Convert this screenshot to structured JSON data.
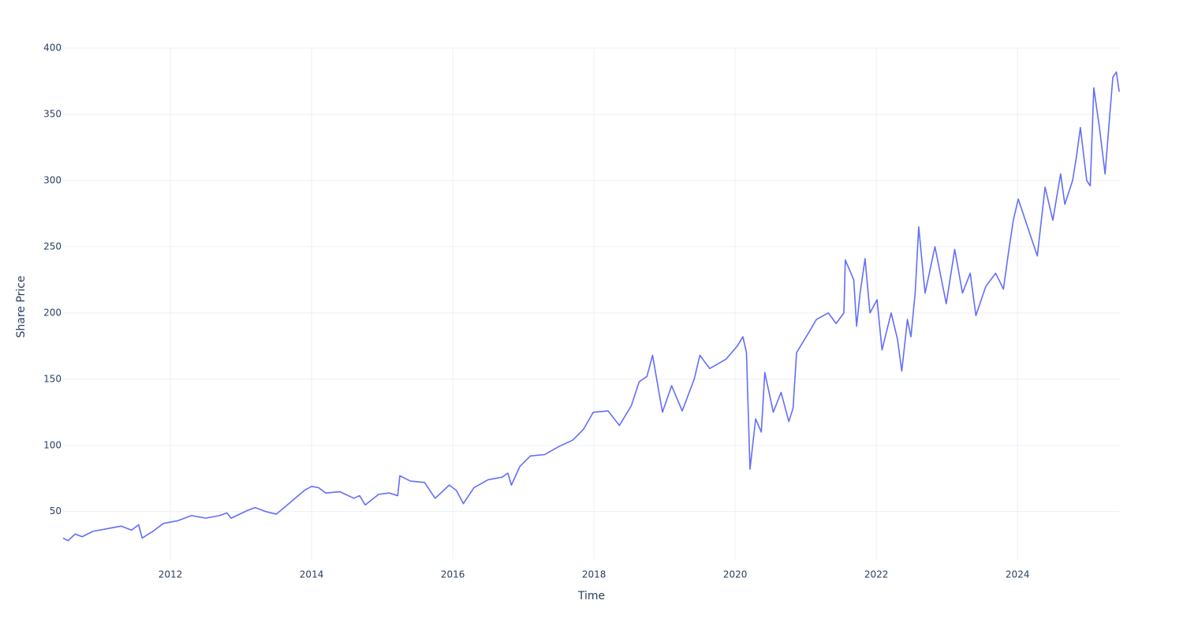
{
  "chart_data": {
    "type": "line",
    "x_label": "Time",
    "y_label": "Share Price",
    "color": "#636efa",
    "grid": true,
    "xlim": [
      2010.48,
      2025.45
    ],
    "xticks": [
      2012,
      2014,
      2016,
      2018,
      2020,
      2022,
      2024
    ],
    "ylim": [
      13.5,
      400.6
    ],
    "yticks": [
      50,
      100,
      150,
      200,
      250,
      300,
      350,
      400
    ],
    "x": [
      2010.48,
      2010.55,
      2010.65,
      2010.75,
      2010.9,
      2011.1,
      2011.3,
      2011.45,
      2011.55,
      2011.6,
      2011.75,
      2011.9,
      2012.1,
      2012.3,
      2012.5,
      2012.7,
      2012.8,
      2012.86,
      2013.1,
      2013.2,
      2013.35,
      2013.5,
      2013.7,
      2013.9,
      2014.0,
      2014.1,
      2014.2,
      2014.4,
      2014.6,
      2014.68,
      2014.76,
      2014.95,
      2015.1,
      2015.22,
      2015.25,
      2015.4,
      2015.6,
      2015.75,
      2015.95,
      2016.05,
      2016.15,
      2016.3,
      2016.5,
      2016.7,
      2016.78,
      2016.83,
      2016.95,
      2017.1,
      2017.3,
      2017.5,
      2017.7,
      2017.85,
      2017.99,
      2018.2,
      2018.36,
      2018.53,
      2018.64,
      2018.75,
      2018.83,
      2018.97,
      2019.1,
      2019.25,
      2019.42,
      2019.5,
      2019.64,
      2019.87,
      2020.03,
      2020.11,
      2020.16,
      2020.21,
      2020.29,
      2020.37,
      2020.42,
      2020.54,
      2020.65,
      2020.76,
      2020.82,
      2020.87,
      2021.04,
      2021.15,
      2021.32,
      2021.43,
      2021.54,
      2021.56,
      2021.68,
      2021.72,
      2021.77,
      2021.84,
      2021.91,
      2022.01,
      2022.08,
      2022.21,
      2022.3,
      2022.36,
      2022.44,
      2022.49,
      2022.55,
      2022.6,
      2022.69,
      2022.83,
      2022.99,
      2023.11,
      2023.22,
      2023.33,
      2023.41,
      2023.55,
      2023.69,
      2023.8,
      2023.87,
      2023.94,
      2024.01,
      2024.11,
      2024.28,
      2024.39,
      2024.5,
      2024.61,
      2024.67,
      2024.78,
      2024.84,
      2024.89,
      2024.98,
      2025.03,
      2025.08,
      2025.16,
      2025.24,
      2025.3,
      2025.35,
      2025.4,
      2025.44
    ],
    "values": [
      30,
      28,
      33,
      31,
      35,
      37,
      39,
      36,
      40,
      30,
      35,
      41,
      43,
      47,
      45,
      47,
      49,
      45,
      51,
      53,
      50,
      48,
      57,
      66,
      69,
      68,
      64,
      65,
      60,
      62,
      55,
      63,
      64,
      62,
      77,
      73,
      72,
      60,
      70,
      66,
      56,
      68,
      74,
      76,
      79,
      70,
      84,
      92,
      93,
      99,
      104,
      112,
      125,
      126,
      115,
      130,
      148,
      152,
      168,
      125,
      145,
      126,
      150,
      168,
      158,
      165,
      175,
      182,
      170,
      82,
      120,
      110,
      155,
      125,
      140,
      118,
      128,
      170,
      185,
      195,
      200,
      192,
      200,
      240,
      225,
      190,
      215,
      241,
      200,
      210,
      172,
      200,
      180,
      156,
      195,
      182,
      215,
      265,
      215,
      250,
      207,
      248,
      215,
      230,
      198,
      220,
      230,
      218,
      245,
      270,
      286,
      270,
      243,
      295,
      270,
      305,
      282,
      300,
      320,
      340,
      300,
      296,
      370,
      340,
      305,
      345,
      378,
      382,
      367
    ]
  }
}
